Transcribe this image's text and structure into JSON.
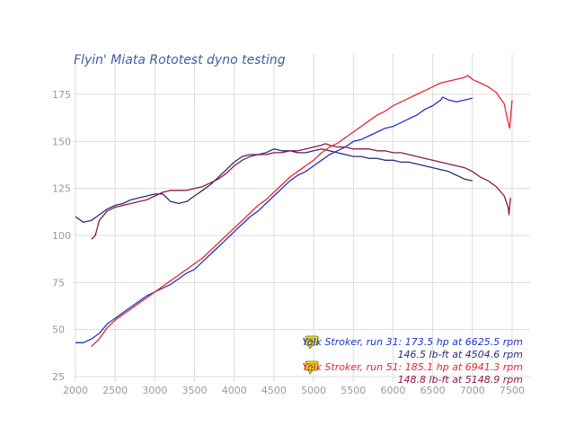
{
  "chart_data": {
    "type": "line",
    "title": "Flyin' Miata Rototest dyno testing",
    "xlabel": "",
    "ylabel": "",
    "xlim": [
      2000,
      7500
    ],
    "ylim": [
      25,
      175
    ],
    "xticks": [
      "2000",
      "2500",
      "3000",
      "3500",
      "4000",
      "4500",
      "5000",
      "5500",
      "6000",
      "6500",
      "7000",
      "7500"
    ],
    "yticks": [
      "25",
      "50",
      "75",
      "100",
      "125",
      "150",
      "175"
    ],
    "grid": true,
    "legend_position": "bottom-right",
    "colors": {
      "title": "#3f5fa0",
      "run31_hp": "#2232c8",
      "run31_tq": "#2e2a7a",
      "run51_hp": "#e8262e",
      "run51_tq": "#8b1a40",
      "note_icon": "#f0e020"
    },
    "legend": [
      {
        "line1": "Yolk Stroker, run 31: 173.5 hp at 6625.5 rpm",
        "line2": "146.5 lb-ft at 4504.6 rpm",
        "color1": "#2232c8",
        "color2": "#2e2a7a"
      },
      {
        "line1": "Yolk Stroker, run 51: 185.1 hp at 6941.3 rpm",
        "line2": "148.8 lb-ft at 5148.9 rpm",
        "color1": "#e8262e",
        "color2": "#8b1a40"
      }
    ],
    "series": [
      {
        "color": "#2e2a7a",
        "points": [
          [
            2000,
            110
          ],
          [
            2100,
            107
          ],
          [
            2200,
            108
          ],
          [
            2300,
            111
          ],
          [
            2400,
            114
          ],
          [
            2500,
            116
          ],
          [
            2600,
            117
          ],
          [
            2700,
            119
          ],
          [
            2800,
            120
          ],
          [
            2900,
            121
          ],
          [
            3000,
            122
          ],
          [
            3100,
            122
          ],
          [
            3150,
            120
          ],
          [
            3200,
            118
          ],
          [
            3300,
            117
          ],
          [
            3400,
            118
          ],
          [
            3500,
            121
          ],
          [
            3600,
            124
          ],
          [
            3700,
            127
          ],
          [
            3800,
            131
          ],
          [
            3900,
            135
          ],
          [
            4000,
            139
          ],
          [
            4100,
            142
          ],
          [
            4200,
            143
          ],
          [
            4300,
            143
          ],
          [
            4400,
            144
          ],
          [
            4500,
            146
          ],
          [
            4600,
            145
          ],
          [
            4700,
            145
          ],
          [
            4800,
            144
          ],
          [
            4900,
            144
          ],
          [
            5000,
            145
          ],
          [
            5100,
            146
          ],
          [
            5200,
            145
          ],
          [
            5300,
            144
          ],
          [
            5400,
            143
          ],
          [
            5500,
            142
          ],
          [
            5600,
            142
          ],
          [
            5700,
            141
          ],
          [
            5800,
            141
          ],
          [
            5900,
            140
          ],
          [
            6000,
            140
          ],
          [
            6100,
            139
          ],
          [
            6200,
            139
          ],
          [
            6300,
            138
          ],
          [
            6400,
            137
          ],
          [
            6500,
            136
          ],
          [
            6600,
            135
          ],
          [
            6700,
            134
          ],
          [
            6800,
            132
          ],
          [
            6900,
            130
          ],
          [
            7000,
            129
          ]
        ]
      },
      {
        "color": "#2232c8",
        "points": [
          [
            2000,
            43
          ],
          [
            2100,
            43
          ],
          [
            2200,
            45
          ],
          [
            2300,
            48
          ],
          [
            2400,
            53
          ],
          [
            2500,
            56
          ],
          [
            2600,
            59
          ],
          [
            2700,
            62
          ],
          [
            2800,
            65
          ],
          [
            2900,
            68
          ],
          [
            3000,
            70
          ],
          [
            3100,
            72
          ],
          [
            3200,
            74
          ],
          [
            3300,
            77
          ],
          [
            3400,
            80
          ],
          [
            3500,
            82
          ],
          [
            3600,
            86
          ],
          [
            3700,
            90
          ],
          [
            3800,
            94
          ],
          [
            3900,
            98
          ],
          [
            4000,
            102
          ],
          [
            4100,
            106
          ],
          [
            4200,
            110
          ],
          [
            4300,
            113
          ],
          [
            4400,
            117
          ],
          [
            4500,
            121
          ],
          [
            4600,
            125
          ],
          [
            4700,
            129
          ],
          [
            4800,
            132
          ],
          [
            4900,
            134
          ],
          [
            5000,
            137
          ],
          [
            5100,
            140
          ],
          [
            5200,
            143
          ],
          [
            5300,
            145
          ],
          [
            5400,
            147
          ],
          [
            5500,
            150
          ],
          [
            5600,
            151
          ],
          [
            5700,
            153
          ],
          [
            5800,
            155
          ],
          [
            5900,
            157
          ],
          [
            6000,
            158
          ],
          [
            6100,
            160
          ],
          [
            6200,
            162
          ],
          [
            6300,
            164
          ],
          [
            6400,
            167
          ],
          [
            6500,
            169
          ],
          [
            6600,
            172
          ],
          [
            6625,
            173.5
          ],
          [
            6700,
            172
          ],
          [
            6800,
            171
          ],
          [
            6900,
            172
          ],
          [
            7000,
            173
          ]
        ]
      },
      {
        "color": "#8b1a40",
        "points": [
          [
            2200,
            98
          ],
          [
            2250,
            100
          ],
          [
            2300,
            108
          ],
          [
            2400,
            113
          ],
          [
            2500,
            115
          ],
          [
            2600,
            116
          ],
          [
            2700,
            117
          ],
          [
            2800,
            118
          ],
          [
            2900,
            119
          ],
          [
            3000,
            121
          ],
          [
            3100,
            123
          ],
          [
            3200,
            124
          ],
          [
            3300,
            124
          ],
          [
            3400,
            124
          ],
          [
            3500,
            125
          ],
          [
            3600,
            126
          ],
          [
            3700,
            128
          ],
          [
            3800,
            130
          ],
          [
            3900,
            133
          ],
          [
            4000,
            137
          ],
          [
            4100,
            140
          ],
          [
            4200,
            142
          ],
          [
            4300,
            143
          ],
          [
            4400,
            143
          ],
          [
            4500,
            144
          ],
          [
            4600,
            144
          ],
          [
            4700,
            145
          ],
          [
            4800,
            145
          ],
          [
            4900,
            146
          ],
          [
            5000,
            147
          ],
          [
            5100,
            148
          ],
          [
            5150,
            148.8
          ],
          [
            5200,
            148
          ],
          [
            5300,
            147
          ],
          [
            5400,
            147
          ],
          [
            5500,
            146
          ],
          [
            5600,
            146
          ],
          [
            5700,
            146
          ],
          [
            5800,
            145
          ],
          [
            5900,
            145
          ],
          [
            6000,
            144
          ],
          [
            6100,
            144
          ],
          [
            6200,
            143
          ],
          [
            6300,
            142
          ],
          [
            6400,
            141
          ],
          [
            6500,
            140
          ],
          [
            6600,
            139
          ],
          [
            6700,
            138
          ],
          [
            6800,
            137
          ],
          [
            6900,
            136
          ],
          [
            7000,
            134
          ],
          [
            7100,
            131
          ],
          [
            7200,
            129
          ],
          [
            7300,
            126
          ],
          [
            7400,
            121
          ],
          [
            7450,
            115
          ],
          [
            7460,
            111
          ],
          [
            7480,
            120
          ]
        ]
      },
      {
        "color": "#e8262e",
        "points": [
          [
            2200,
            41
          ],
          [
            2300,
            45
          ],
          [
            2400,
            51
          ],
          [
            2500,
            55
          ],
          [
            2600,
            58
          ],
          [
            2700,
            61
          ],
          [
            2800,
            64
          ],
          [
            2900,
            67
          ],
          [
            3000,
            70
          ],
          [
            3100,
            73
          ],
          [
            3200,
            76
          ],
          [
            3300,
            79
          ],
          [
            3400,
            82
          ],
          [
            3500,
            85
          ],
          [
            3600,
            88
          ],
          [
            3700,
            92
          ],
          [
            3800,
            96
          ],
          [
            3900,
            100
          ],
          [
            4000,
            104
          ],
          [
            4100,
            108
          ],
          [
            4200,
            112
          ],
          [
            4300,
            116
          ],
          [
            4400,
            119
          ],
          [
            4500,
            123
          ],
          [
            4600,
            127
          ],
          [
            4700,
            131
          ],
          [
            4800,
            134
          ],
          [
            4900,
            137
          ],
          [
            5000,
            140
          ],
          [
            5100,
            144
          ],
          [
            5200,
            147
          ],
          [
            5300,
            149
          ],
          [
            5400,
            152
          ],
          [
            5500,
            155
          ],
          [
            5600,
            158
          ],
          [
            5700,
            161
          ],
          [
            5800,
            164
          ],
          [
            5900,
            166
          ],
          [
            6000,
            169
          ],
          [
            6100,
            171
          ],
          [
            6200,
            173
          ],
          [
            6300,
            175
          ],
          [
            6400,
            177
          ],
          [
            6500,
            179
          ],
          [
            6600,
            181
          ],
          [
            6700,
            182
          ],
          [
            6800,
            183
          ],
          [
            6900,
            184
          ],
          [
            6941,
            185.1
          ],
          [
            7000,
            183
          ],
          [
            7100,
            181
          ],
          [
            7200,
            179
          ],
          [
            7300,
            176
          ],
          [
            7400,
            170
          ],
          [
            7450,
            160
          ],
          [
            7470,
            157
          ],
          [
            7500,
            172
          ]
        ]
      }
    ]
  }
}
